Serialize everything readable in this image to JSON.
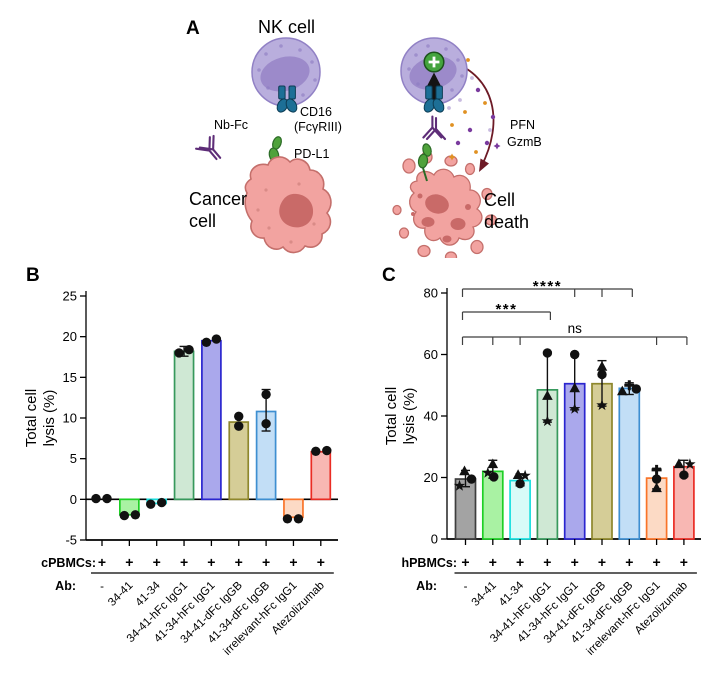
{
  "panelA": {
    "label": "A",
    "labels": {
      "nk_cell": "NK cell",
      "cd16": "CD16",
      "fcgriii": "(FcγRIII)",
      "nb_fc": "Nb-Fc",
      "pd_l1": "PD-L1",
      "cancer_line1": "Cancer",
      "cancer_line2": "cell",
      "pfn": "PFN",
      "gzmb": "GzmB",
      "death_line1": "Cell",
      "death_line2": "death"
    },
    "colors": {
      "nk_body": "#b9aedd",
      "nk_outline": "#9181c5",
      "nk_nucleus": "#9c8aca",
      "receptor": "#1d6f96",
      "receptor_outline": "#0d3c54",
      "antibody": "#5e2d78",
      "pdl1": "#4fa23b",
      "pdl1_outline": "#2b6b26",
      "cancer_body": "#f2a3a0",
      "cancer_outline": "#c46f6b",
      "cancer_nucleus": "#c96a68",
      "activation_green": "#44a33e",
      "granule_arrow": "#6d1a26",
      "dot_orange": "#e09122",
      "dot_purple": "#7a3b9e",
      "dot_lavender": "#c9bce0"
    }
  },
  "chart_data": [
    {
      "panel": "B",
      "type": "bar",
      "ylabel_line1": "Total cell",
      "ylabel_line2": "lysis (%)",
      "ylim": [
        -5,
        25
      ],
      "yticks": [
        -5,
        0,
        5,
        10,
        15,
        20,
        25
      ],
      "row_label": "cPBMCs:",
      "row_values": [
        "+",
        "+",
        "+",
        "+",
        "+",
        "+",
        "+",
        "+",
        "+"
      ],
      "ab_label": "Ab:",
      "categories": [
        "-",
        "34-41",
        "41-34",
        "34-41-hFc IgG1",
        "41-34-hFc IgG1",
        "34-41-dFc IgGB",
        "41-34-dFc IgGB",
        "irrelevant-hFc IgG1",
        "Atezolizumab"
      ],
      "bars": [
        {
          "value": 0.1,
          "fill": null,
          "stroke": null,
          "points": [
            {
              "v": 0.1,
              "dx": -6,
              "shape": "circle"
            },
            {
              "v": 0.1,
              "dx": 5,
              "shape": "circle"
            }
          ]
        },
        {
          "value": -1.9,
          "fill": "#a9f2a3",
          "stroke": "#1ecf25",
          "points": [
            {
              "v": -2.0,
              "dx": -5,
              "shape": "circle"
            },
            {
              "v": -1.9,
              "dx": 6,
              "shape": "circle"
            }
          ]
        },
        {
          "value": -0.5,
          "fill": "#d8fbf8",
          "stroke": "#19dede",
          "points": [
            {
              "v": -0.6,
              "dx": -6,
              "shape": "circle"
            },
            {
              "v": -0.4,
              "dx": 5,
              "shape": "circle"
            }
          ]
        },
        {
          "value": 18.2,
          "fill": "#cfe8d4",
          "stroke": "#37995c",
          "error": [
            17.6,
            18.8
          ],
          "points": [
            {
              "v": 18.0,
              "dx": -5,
              "shape": "circle"
            },
            {
              "v": 18.4,
              "dx": 5,
              "shape": "circle"
            }
          ]
        },
        {
          "value": 19.5,
          "fill": "#aaa8ec",
          "stroke": "#2a25cf",
          "points": [
            {
              "v": 19.3,
              "dx": -5,
              "shape": "circle"
            },
            {
              "v": 19.7,
              "dx": 5,
              "shape": "circle"
            }
          ]
        },
        {
          "value": 9.5,
          "fill": "#d5cd97",
          "stroke": "#8e872c",
          "points": [
            {
              "v": 10.2,
              "dx": 0,
              "shape": "circle"
            },
            {
              "v": 9.0,
              "dx": 0,
              "shape": "circle"
            }
          ]
        },
        {
          "value": 10.8,
          "fill": "#c2def6",
          "stroke": "#3e8fd1",
          "error": [
            8.4,
            13.5
          ],
          "points": [
            {
              "v": 12.9,
              "dx": 0,
              "shape": "circle"
            },
            {
              "v": 9.3,
              "dx": 0,
              "shape": "circle"
            }
          ]
        },
        {
          "value": -2.2,
          "fill": "#fcdac5",
          "stroke": "#f97429",
          "points": [
            {
              "v": -2.4,
              "dx": -6,
              "shape": "circle"
            },
            {
              "v": -2.4,
              "dx": 5,
              "shape": "circle"
            }
          ]
        },
        {
          "value": 5.85,
          "fill": "#f8b7b3",
          "stroke": "#ea2c24",
          "points": [
            {
              "v": 5.9,
              "dx": -5,
              "shape": "circle"
            },
            {
              "v": 6.0,
              "dx": 6,
              "shape": "circle"
            }
          ]
        }
      ]
    },
    {
      "panel": "C",
      "type": "bar",
      "ylabel_line1": "Total cell",
      "ylabel_line2": "lysis (%)",
      "ylim": [
        0,
        80
      ],
      "yticks": [
        0,
        20,
        40,
        60,
        80
      ],
      "row_label": "hPBMCs:",
      "row_values": [
        "+",
        "+",
        "+",
        "+",
        "+",
        "+",
        "+",
        "+",
        "+"
      ],
      "ab_label": "Ab:",
      "categories": [
        "-",
        "34-41",
        "41-34",
        "34-41-hFc IgG1",
        "41-34-hFc IgG1",
        "34-41-dFc IgGB",
        "41-34-dFc IgGB",
        "irrelevant-hFc IgG1",
        "Atezolizumab"
      ],
      "significance": [
        {
          "label": "****",
          "from": 0,
          "to": 6,
          "ticks": [
            0,
            4,
            5,
            6
          ]
        },
        {
          "label": "***",
          "from": 0,
          "to": 3,
          "ticks": [
            0,
            3
          ]
        },
        {
          "label": "ns",
          "from": 0,
          "to": 8,
          "ticks": [
            0,
            1,
            2,
            7,
            8
          ]
        }
      ],
      "bars": [
        {
          "value": 19.5,
          "fill": "#a3a3a3",
          "stroke": "#3d3d3d",
          "error": [
            17.0,
            22.3
          ],
          "points": [
            {
              "v": 17.3,
              "dx": -6,
              "shape": "star"
            },
            {
              "v": 19.5,
              "dx": 6,
              "shape": "circle"
            },
            {
              "v": 22.0,
              "dx": -1,
              "shape": "triangle"
            }
          ]
        },
        {
          "value": 22.0,
          "fill": "#a9f2a3",
          "stroke": "#1ecf25",
          "error": [
            19.8,
            25.6
          ],
          "points": [
            {
              "v": 21.5,
              "dx": -5,
              "shape": "star"
            },
            {
              "v": 20.2,
              "dx": 1,
              "shape": "circle"
            },
            {
              "v": 24.3,
              "dx": 0,
              "shape": "triangle"
            }
          ]
        },
        {
          "value": 19.0,
          "fill": "#d8fbf8",
          "stroke": "#19dede",
          "error": [
            17.3,
            21.2
          ],
          "points": [
            {
              "v": 18.0,
              "dx": 0,
              "shape": "circle"
            },
            {
              "v": 20.8,
              "dx": -2,
              "shape": "triangle"
            },
            {
              "v": 20.6,
              "dx": 5,
              "shape": "star"
            }
          ]
        },
        {
          "value": 48.5,
          "fill": "#cfe8d4",
          "stroke": "#37995c",
          "error": [
            38.0,
            60.8
          ],
          "points": [
            {
              "v": 38.3,
              "dx": 0,
              "shape": "star"
            },
            {
              "v": 46.5,
              "dx": 0,
              "shape": "triangle"
            },
            {
              "v": 60.5,
              "dx": 0,
              "shape": "circle"
            }
          ]
        },
        {
          "value": 50.5,
          "fill": "#aaa8ec",
          "stroke": "#2a25cf",
          "error": [
            42.0,
            60.3
          ],
          "points": [
            {
              "v": 42.3,
              "dx": 0,
              "shape": "star"
            },
            {
              "v": 49.0,
              "dx": 0,
              "shape": "triangle"
            },
            {
              "v": 60.0,
              "dx": 0,
              "shape": "circle"
            }
          ]
        },
        {
          "value": 50.5,
          "fill": "#d5cd97",
          "stroke": "#8e872c",
          "error": [
            43.2,
            58.0
          ],
          "points": [
            {
              "v": 43.5,
              "dx": 0,
              "shape": "star"
            },
            {
              "v": 53.5,
              "dx": 0,
              "shape": "circle"
            },
            {
              "v": 56.0,
              "dx": 0,
              "shape": "triangle"
            }
          ]
        },
        {
          "value": 49.0,
          "fill": "#c2def6",
          "stroke": "#3e8fd1",
          "error": [
            47.0,
            50.8
          ],
          "points": [
            {
              "v": 48.0,
              "dx": -7,
              "shape": "triangle"
            },
            {
              "v": 50.0,
              "dx": 0,
              "shape": "plus"
            },
            {
              "v": 48.8,
              "dx": 7,
              "shape": "circle"
            }
          ]
        },
        {
          "value": 19.8,
          "fill": "#fcdac5",
          "stroke": "#f97429",
          "error": [
            16.3,
            23.0
          ],
          "points": [
            {
              "v": 16.5,
              "dx": 0,
              "shape": "triangle"
            },
            {
              "v": 19.5,
              "dx": 0,
              "shape": "circle"
            },
            {
              "v": 22.5,
              "dx": 0,
              "shape": "plus"
            }
          ]
        },
        {
          "value": 23.5,
          "fill": "#f8b7b3",
          "stroke": "#ea2c24",
          "error": [
            20.3,
            25.6
          ],
          "points": [
            {
              "v": 20.8,
              "dx": 0,
              "shape": "circle"
            },
            {
              "v": 24.3,
              "dx": -5,
              "shape": "triangle"
            },
            {
              "v": 24.3,
              "dx": 6,
              "shape": "star"
            }
          ]
        }
      ]
    }
  ]
}
